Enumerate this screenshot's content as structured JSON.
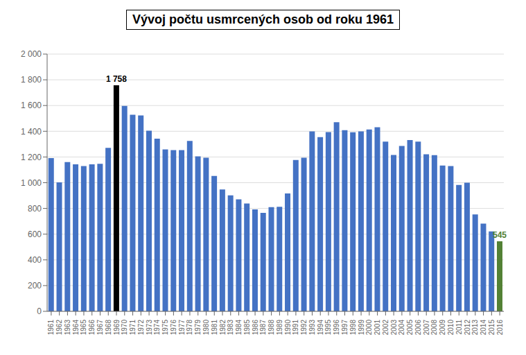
{
  "chart_data": {
    "type": "bar",
    "title": "Vývoj počtu usmrcených osob od roku 1961",
    "categories": [
      "1961",
      "1962",
      "1963",
      "1964",
      "1965",
      "1966",
      "1967",
      "1968",
      "1969",
      "1970",
      "1971",
      "1972",
      "1973",
      "1974",
      "1975",
      "1976",
      "1977",
      "1978",
      "1979",
      "1980",
      "1981",
      "1982",
      "1983",
      "1984",
      "1985",
      "1986",
      "1987",
      "1988",
      "1989",
      "1990",
      "1991",
      "1992",
      "1993",
      "1994",
      "1995",
      "1996",
      "1997",
      "1998",
      "1999",
      "2000",
      "2001",
      "2002",
      "2003",
      "2004",
      "2005",
      "2006",
      "2007",
      "2008",
      "2009",
      "2010",
      "2011",
      "2012",
      "2013",
      "2014",
      "2015",
      "2016"
    ],
    "values": [
      1192,
      1003,
      1161,
      1143,
      1130,
      1143,
      1147,
      1271,
      1758,
      1597,
      1528,
      1523,
      1404,
      1342,
      1259,
      1253,
      1253,
      1325,
      1205,
      1194,
      1053,
      948,
      902,
      870,
      838,
      792,
      765,
      810,
      813,
      916,
      1177,
      1194,
      1399,
      1355,
      1394,
      1470,
      1408,
      1392,
      1399,
      1414,
      1431,
      1319,
      1215,
      1286,
      1332,
      1319,
      1221,
      1214,
      1134,
      1130,
      983,
      1000,
      754,
      682,
      621,
      545
    ],
    "colors": [
      "#4472C4",
      "#4472C4",
      "#4472C4",
      "#4472C4",
      "#4472C4",
      "#4472C4",
      "#4472C4",
      "#4472C4",
      "#000000",
      "#4472C4",
      "#4472C4",
      "#4472C4",
      "#4472C4",
      "#4472C4",
      "#4472C4",
      "#4472C4",
      "#4472C4",
      "#4472C4",
      "#4472C4",
      "#4472C4",
      "#4472C4",
      "#4472C4",
      "#4472C4",
      "#4472C4",
      "#4472C4",
      "#4472C4",
      "#4472C4",
      "#4472C4",
      "#4472C4",
      "#4472C4",
      "#4472C4",
      "#4472C4",
      "#4472C4",
      "#4472C4",
      "#4472C4",
      "#4472C4",
      "#4472C4",
      "#4472C4",
      "#4472C4",
      "#4472C4",
      "#4472C4",
      "#4472C4",
      "#4472C4",
      "#4472C4",
      "#4472C4",
      "#4472C4",
      "#4472C4",
      "#4472C4",
      "#4472C4",
      "#4472C4",
      "#4472C4",
      "#4472C4",
      "#4472C4",
      "#4472C4",
      "#4472C4",
      "#538135"
    ],
    "annotations": [
      {
        "text": "1 758",
        "x": "1969",
        "y": 1758,
        "color": "#000000"
      },
      {
        "text": "545",
        "x": "2016",
        "y": 545,
        "color": "#538135"
      }
    ],
    "ylim": [
      0,
      2000
    ],
    "yticks": [
      0,
      200,
      400,
      600,
      800,
      {
        "value": 1000,
        "label": "1 000"
      },
      {
        "value": 1200,
        "label": "1 200"
      },
      {
        "value": 1400,
        "label": "1 400"
      },
      {
        "value": 1600,
        "label": "1 600"
      },
      {
        "value": 1800,
        "label": "1 800"
      },
      {
        "value": 2000,
        "label": "2 000"
      }
    ],
    "grid": true
  }
}
